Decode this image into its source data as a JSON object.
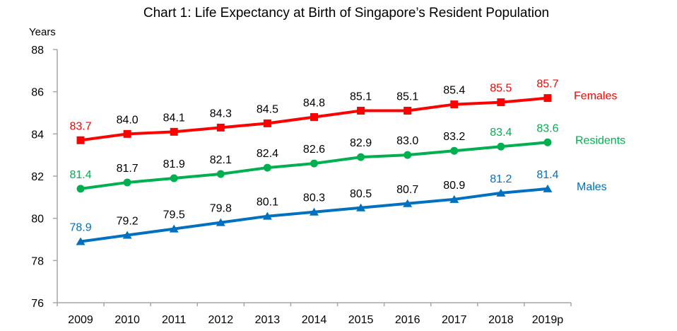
{
  "chart_data": {
    "type": "line",
    "title": "Chart 1: Life Expectancy at Birth of Singapore’s Resident Population",
    "xlabel": "",
    "ylabel": "Years",
    "ylim": [
      76,
      88
    ],
    "yticks": [
      76,
      78,
      80,
      82,
      84,
      86,
      88
    ],
    "grid": false,
    "categories": [
      "2009",
      "2010",
      "2011",
      "2012",
      "2013",
      "2014",
      "2015",
      "2016",
      "2017",
      "2018",
      "2019p"
    ],
    "series": [
      {
        "name": "Females",
        "color": "#ff0000",
        "marker": "square",
        "values": [
          83.7,
          84.0,
          84.1,
          84.3,
          84.5,
          84.8,
          85.1,
          85.1,
          85.4,
          85.5,
          85.7
        ],
        "labels": [
          "83.7",
          "84.0",
          "84.1",
          "84.3",
          "84.5",
          "84.8",
          "85.1",
          "85.1",
          "85.4",
          "85.5",
          "85.7"
        ],
        "colored_label_indices": [
          0,
          9,
          10
        ]
      },
      {
        "name": "Residents",
        "color": "#00b050",
        "marker": "circle",
        "values": [
          81.4,
          81.7,
          81.9,
          82.1,
          82.4,
          82.6,
          82.9,
          83.0,
          83.2,
          83.4,
          83.6
        ],
        "labels": [
          "81.4",
          "81.7",
          "81.9",
          "82.1",
          "82.4",
          "82.6",
          "82.9",
          "83.0",
          "83.2",
          "83.4",
          "83.6"
        ],
        "colored_label_indices": [
          0,
          9,
          10
        ]
      },
      {
        "name": "Males",
        "color": "#0070c0",
        "marker": "triangle",
        "values": [
          78.9,
          79.2,
          79.5,
          79.8,
          80.1,
          80.3,
          80.5,
          80.7,
          80.9,
          81.2,
          81.4
        ],
        "labels": [
          "78.9",
          "79.2",
          "79.5",
          "79.8",
          "80.1",
          "80.3",
          "80.5",
          "80.7",
          "80.9",
          "81.2",
          "81.4"
        ],
        "colored_label_indices": [
          0,
          9,
          10
        ]
      }
    ],
    "legend": "right, inline at series end",
    "default_label_color": "#000000",
    "axis_color": "#a6a6a6"
  }
}
